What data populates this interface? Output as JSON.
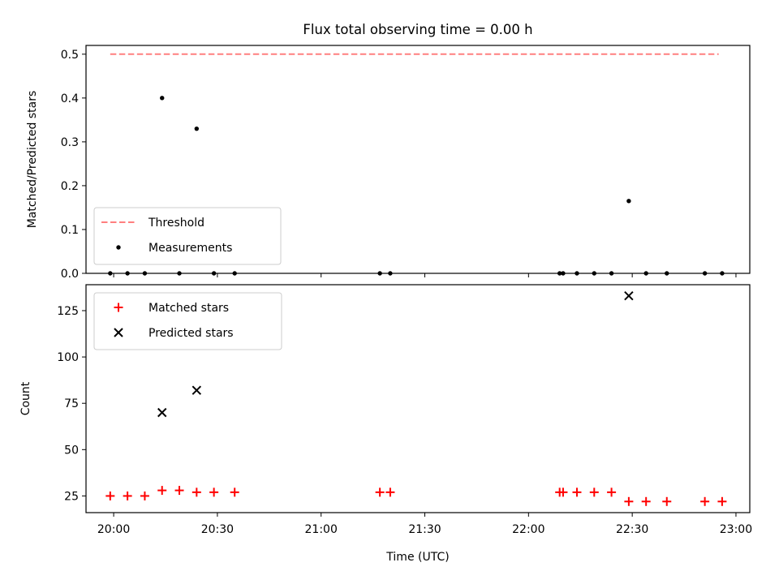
{
  "chart_data": [
    {
      "type": "scatter",
      "title": "Flux total observing time = 0.00 h",
      "ylabel": "Matched/Predicted stars",
      "xlabel": "",
      "xlim": [
        "19:52",
        "23:04"
      ],
      "ylim": [
        0,
        0.52
      ],
      "xticks": [
        "20:00",
        "20:30",
        "21:00",
        "21:30",
        "22:00",
        "22:30",
        "23:00"
      ],
      "yticks": [
        "0.0",
        "0.1",
        "0.2",
        "0.3",
        "0.4",
        "0.5"
      ],
      "legend_position": "lower-left",
      "threshold": {
        "name": "Threshold",
        "value": 0.5,
        "x": [
          "19:59",
          "22:55"
        ],
        "style": "dashed",
        "color": "#ff7f7f"
      },
      "series": [
        {
          "name": "Measurements",
          "marker": "dot",
          "color": "#000000",
          "x": [
            "19:59",
            "20:04",
            "20:09",
            "20:14",
            "20:19",
            "20:24",
            "20:29",
            "20:35",
            "21:17",
            "21:20",
            "22:09",
            "22:10",
            "22:14",
            "22:19",
            "22:24",
            "22:29",
            "22:34",
            "22:40",
            "22:51",
            "22:56"
          ],
          "y": [
            0,
            0,
            0,
            0.4,
            0,
            0.33,
            0,
            0,
            0,
            0,
            0,
            0,
            0,
            0,
            0,
            0.165,
            0,
            0,
            0,
            0
          ]
        }
      ]
    },
    {
      "type": "scatter",
      "title": "",
      "ylabel": "Count",
      "xlabel": "Time (UTC)",
      "xlim": [
        "19:52",
        "23:04"
      ],
      "ylim": [
        16,
        139
      ],
      "xticks": [
        "20:00",
        "20:30",
        "21:00",
        "21:30",
        "22:00",
        "22:30",
        "23:00"
      ],
      "yticks": [
        "25",
        "50",
        "75",
        "100",
        "125"
      ],
      "legend_position": "upper-left",
      "series": [
        {
          "name": "Matched stars",
          "marker": "plus",
          "color": "#ff0000",
          "x": [
            "19:59",
            "20:04",
            "20:09",
            "20:14",
            "20:19",
            "20:24",
            "20:29",
            "20:35",
            "21:17",
            "21:20",
            "22:09",
            "22:10",
            "22:14",
            "22:19",
            "22:24",
            "22:29",
            "22:34",
            "22:40",
            "22:51",
            "22:56"
          ],
          "y": [
            25,
            25,
            25,
            28,
            28,
            27,
            27,
            27,
            27,
            27,
            27,
            27,
            27,
            27,
            27,
            22,
            22,
            22,
            22,
            22
          ]
        },
        {
          "name": "Predicted stars",
          "marker": "x",
          "color": "#000000",
          "x": [
            "20:14",
            "20:24",
            "22:29"
          ],
          "y": [
            70,
            82,
            133
          ]
        }
      ]
    }
  ]
}
